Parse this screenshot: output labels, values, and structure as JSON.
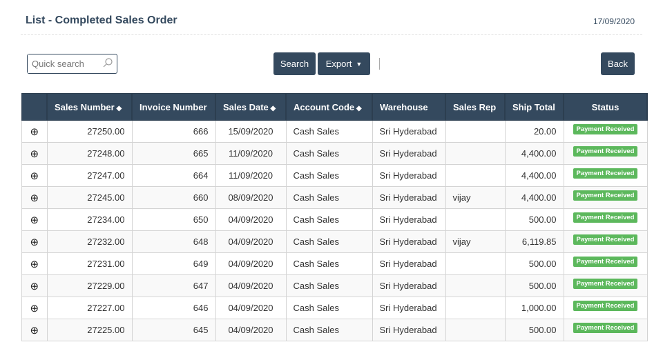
{
  "header": {
    "title": "List - Completed Sales Order",
    "date": "17/09/2020"
  },
  "toolbar": {
    "search_placeholder": "Quick search",
    "search_label": "Search",
    "export_label": "Export",
    "back_label": "Back"
  },
  "table": {
    "columns": [
      "",
      "Sales Number",
      "Invoice Number",
      "Sales Date",
      "Account Code",
      "Warehouse",
      "Sales Rep",
      "Ship Total",
      "Status"
    ],
    "sortable": [
      false,
      true,
      false,
      true,
      true,
      false,
      false,
      false,
      false
    ],
    "rows": [
      [
        "27250.00",
        "666",
        "15/09/2020",
        "Cash Sales",
        "Sri Hyderabad",
        "",
        "20.00",
        "Payment Received"
      ],
      [
        "27248.00",
        "665",
        "11/09/2020",
        "Cash Sales",
        "Sri Hyderabad",
        "",
        "4,400.00",
        "Payment Received"
      ],
      [
        "27247.00",
        "664",
        "11/09/2020",
        "Cash Sales",
        "Sri Hyderabad",
        "",
        "4,400.00",
        "Payment Received"
      ],
      [
        "27245.00",
        "660",
        "08/09/2020",
        "Cash Sales",
        "Sri Hyderabad",
        "vijay",
        "4,400.00",
        "Payment Received"
      ],
      [
        "27234.00",
        "650",
        "04/09/2020",
        "Cash Sales",
        "Sri Hyderabad",
        "",
        "500.00",
        "Payment Received"
      ],
      [
        "27232.00",
        "648",
        "04/09/2020",
        "Cash Sales",
        "Sri Hyderabad",
        "vijay",
        "6,119.85",
        "Payment Received"
      ],
      [
        "27231.00",
        "649",
        "04/09/2020",
        "Cash Sales",
        "Sri Hyderabad",
        "",
        "500.00",
        "Payment Received"
      ],
      [
        "27229.00",
        "647",
        "04/09/2020",
        "Cash Sales",
        "Sri Hyderabad",
        "",
        "500.00",
        "Payment Received"
      ],
      [
        "27227.00",
        "646",
        "04/09/2020",
        "Cash Sales",
        "Sri Hyderabad",
        "",
        "1,000.00",
        "Payment Received"
      ],
      [
        "27225.00",
        "645",
        "04/09/2020",
        "Cash Sales",
        "Sri Hyderabad",
        "",
        "500.00",
        "Payment Received"
      ]
    ]
  },
  "colors": {
    "primary": "#34495e",
    "success": "#5cb85c"
  }
}
